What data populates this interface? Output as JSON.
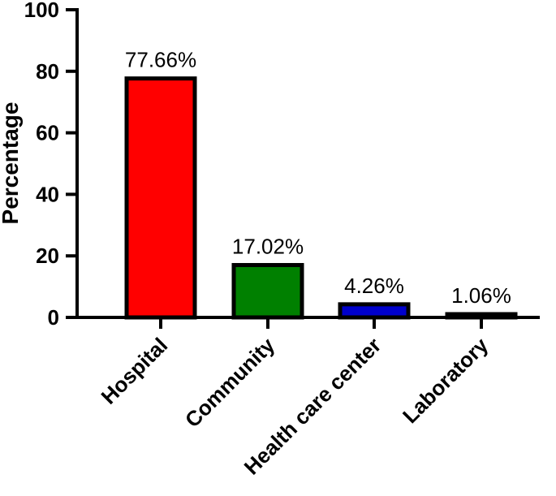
{
  "chart_data": {
    "type": "bar",
    "categories": [
      "Hospital",
      "Community",
      "Health care center",
      "Laboratory"
    ],
    "values": [
      77.66,
      17.02,
      4.26,
      1.06
    ],
    "data_labels": [
      "77.66%",
      "17.02%",
      "4.26%",
      "1.06%"
    ],
    "colors": [
      "#ff0000",
      "#008000",
      "#0000cc",
      "#0000cc"
    ],
    "title": "",
    "xlabel": "",
    "ylabel": "Percentage",
    "ylim": [
      0,
      100
    ],
    "yticks": [
      0,
      20,
      40,
      60,
      80,
      100
    ],
    "ytick_labels": [
      "0",
      "20",
      "40",
      "60",
      "80",
      "100"
    ],
    "grid": false,
    "legend": "none"
  }
}
